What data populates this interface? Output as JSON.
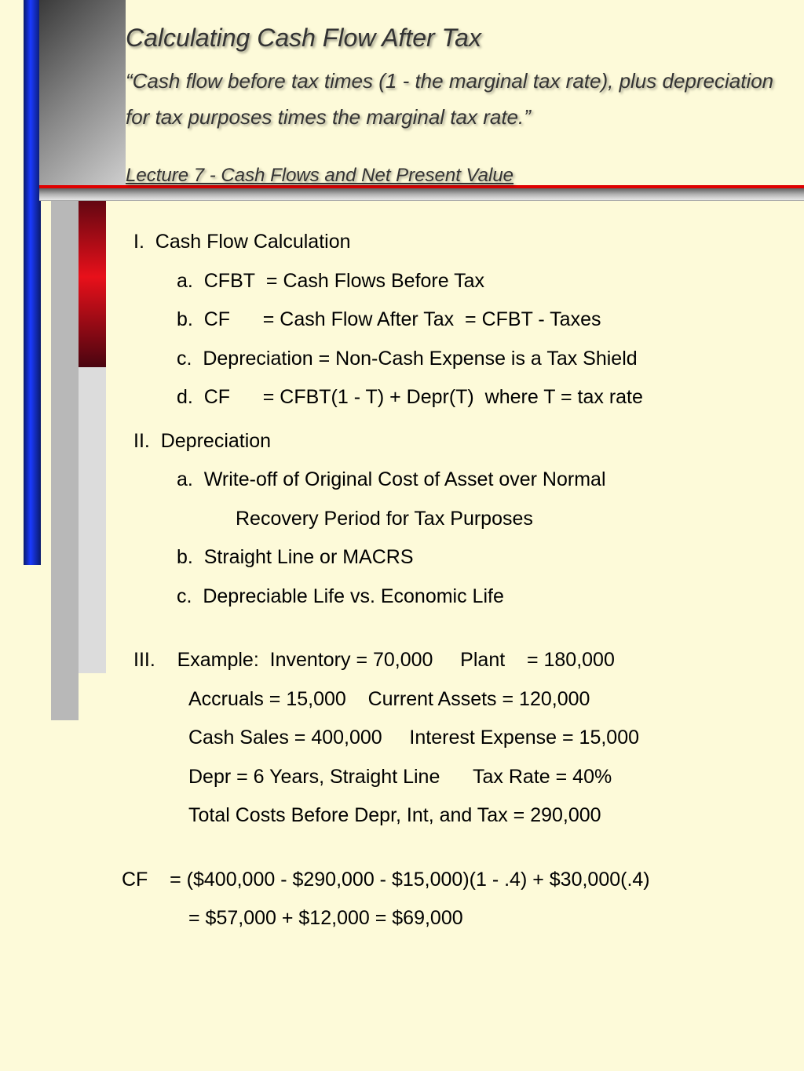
{
  "colors": {
    "page_bg": "#fdfad9",
    "blue_bar": "#1a3aff",
    "red_bar": "#e8101a",
    "gray_bar": "#b8b8b8",
    "divider_red": "#e00000",
    "text_shadow": "rgba(0,0,0,0.4)",
    "body_text": "#000000",
    "header_text": "#333333"
  },
  "typography": {
    "title_fontsize": 32,
    "subtitle_fontsize": 26,
    "lecture_fontsize": 24,
    "body_fontsize": 25,
    "font_family": "Arial",
    "header_italic": true
  },
  "header": {
    "title": "Calculating Cash Flow After Tax",
    "subtitle": "“Cash flow before tax times (1 - the marginal tax rate), plus depreciation for tax purposes times the marginal tax rate.”",
    "lecture": "Lecture 7 - Cash Flows and Net Present Value"
  },
  "section1": {
    "head": "I.  Cash Flow Calculation",
    "a": "a.  CFBT  = Cash Flows Before Tax",
    "b": "b.  CF      = Cash Flow After Tax  = CFBT - Taxes",
    "c": "c.  Depreciation = Non-Cash Expense is a Tax Shield",
    "d": "d.  CF      = CFBT(1 - T) + Depr(T)  where T = tax rate"
  },
  "section2": {
    "head": "II.  Depreciation",
    "a1": "a.  Write-off of Original Cost of Asset over Normal",
    "a2": "Recovery Period for Tax Purposes",
    "b": "b.  Straight Line or MACRS",
    "c": "c.  Depreciable Life vs. Economic Life"
  },
  "section3": {
    "head": "III.    Example:  Inventory = 70,000     Plant    = 180,000",
    "r1": "Accruals = 15,000    Current Assets = 120,000",
    "r2": "Cash Sales = 400,000     Interest Expense = 15,000",
    "r3": "Depr = 6 Years, Straight Line      Tax Rate = 40%",
    "r4": "Total Costs Before Depr, Int, and Tax = 290,000"
  },
  "calc": {
    "l1": "CF    = ($400,000 - $290,000 - $15,000)(1 - .4) + $30,000(.4)",
    "l2": "= $57,000 + $12,000 = $69,000"
  },
  "example_values": {
    "inventory": 70000,
    "plant": 180000,
    "accruals": 15000,
    "current_assets": 120000,
    "cash_sales": 400000,
    "interest_expense": 15000,
    "depr_years": 6,
    "depr_method": "Straight Line",
    "tax_rate_pct": 40,
    "total_costs_before_dit": 290000,
    "cf_operating": 57000,
    "cf_tax_shield": 12000,
    "cf_total": 69000
  }
}
